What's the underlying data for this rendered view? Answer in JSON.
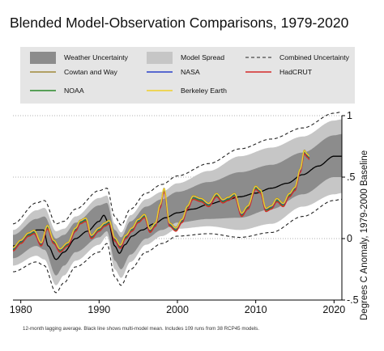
{
  "chart_data": {
    "type": "line",
    "title": "Blended Model-Observation Comparisons, 1979-2020",
    "xlabel": "",
    "ylabel": "Degrees C Anomaly, 1979-2000 Baseline",
    "footnote": "12-month lagging average. Black line shows multi-model mean. Includes 109 runs from 38 RCP45 models.",
    "xlim": [
      1979,
      2021
    ],
    "ylim": [
      -0.5,
      1.0
    ],
    "x_ticks": [
      1980,
      1990,
      2000,
      2010,
      2020
    ],
    "y_ticks": [
      1,
      0.5,
      0,
      -0.5
    ],
    "y_tick_labels": [
      "1",
      ".5",
      "0",
      "-.5"
    ],
    "grid": "horizontal-dotted",
    "legend_position": "top",
    "legend": [
      {
        "label": "Weather Uncertainty",
        "kind": "band",
        "color": "#8c8c8c"
      },
      {
        "label": "Model Spread",
        "kind": "band",
        "color": "#c6c6c6"
      },
      {
        "label": "Combined Uncertainty",
        "kind": "dashed",
        "color": "#222222"
      },
      {
        "label": "Cowtan and Way",
        "kind": "line",
        "color": "#a08a3a"
      },
      {
        "label": "NASA",
        "kind": "line",
        "color": "#2a40c8"
      },
      {
        "label": "HadCRUT",
        "kind": "line",
        "color": "#d42a2a"
      },
      {
        "label": "NOAA",
        "kind": "line",
        "color": "#2a8a2a"
      },
      {
        "label": "Berkeley Earth",
        "kind": "line",
        "color": "#f0d02a"
      }
    ],
    "model_mean": {
      "x": [
        1979,
        1981,
        1982,
        1982.9,
        1983.5,
        1984.5,
        1985.5,
        1987,
        1988.5,
        1990,
        1990.6,
        1991.2,
        1992,
        1992.6,
        1993.3,
        1994.2,
        1995.5,
        1997,
        1998.5,
        2000,
        2002,
        2004,
        2006,
        2008,
        2010,
        2012,
        2014,
        2016,
        2018,
        2020,
        2021
      ],
      "y": [
        -0.06,
        0.02,
        0.07,
        0.07,
        -0.06,
        -0.17,
        -0.11,
        0.0,
        0.06,
        0.14,
        0.19,
        0.13,
        -0.06,
        -0.12,
        -0.05,
        0.02,
        0.07,
        0.12,
        0.17,
        0.21,
        0.24,
        0.28,
        0.31,
        0.34,
        0.37,
        0.41,
        0.45,
        0.52,
        0.59,
        0.67,
        0.67
      ]
    },
    "model_spread": {
      "x": [
        1979,
        1982,
        1983,
        1984.5,
        1985.5,
        1987,
        1990,
        1991,
        1992,
        1992.8,
        1994,
        1996,
        1998,
        2000,
        2004,
        2008,
        2012,
        2016,
        2020,
        2021
      ],
      "upper": [
        0.07,
        0.23,
        0.25,
        0.06,
        0.08,
        0.18,
        0.33,
        0.35,
        0.12,
        0.05,
        0.19,
        0.32,
        0.38,
        0.45,
        0.55,
        0.67,
        0.74,
        0.83,
        0.96,
        0.97
      ],
      "lower": [
        -0.22,
        -0.14,
        -0.17,
        -0.38,
        -0.3,
        -0.18,
        -0.05,
        0.02,
        -0.25,
        -0.32,
        -0.19,
        -0.05,
        0.02,
        0.08,
        0.1,
        0.07,
        0.12,
        0.26,
        0.36,
        0.37
      ]
    },
    "weather_uncertainty": {
      "x": [
        1979,
        1982,
        1983,
        1984.5,
        1985.5,
        1987,
        1990,
        1991,
        1992,
        1992.8,
        1994,
        1996,
        1998,
        2000,
        2004,
        2008,
        2012,
        2016,
        2020,
        2021
      ],
      "upper": [
        0.03,
        0.16,
        0.18,
        0.0,
        0.03,
        0.13,
        0.27,
        0.29,
        0.07,
        0.01,
        0.14,
        0.26,
        0.32,
        0.38,
        0.46,
        0.54,
        0.6,
        0.7,
        0.84,
        0.85
      ],
      "lower": [
        -0.16,
        -0.06,
        -0.09,
        -0.3,
        -0.22,
        -0.11,
        0.01,
        0.06,
        -0.18,
        -0.25,
        -0.13,
        0.0,
        0.07,
        0.13,
        0.16,
        0.17,
        0.24,
        0.36,
        0.5,
        0.5
      ]
    },
    "combined_uncertainty": {
      "x": [
        1979,
        1982,
        1983,
        1984.5,
        1985.5,
        1987,
        1990,
        1991,
        1992,
        1992.8,
        1994,
        1996,
        1998,
        2000,
        2004,
        2008,
        2012,
        2016,
        2020,
        2021
      ],
      "upper": [
        0.12,
        0.29,
        0.31,
        0.12,
        0.14,
        0.24,
        0.39,
        0.41,
        0.18,
        0.11,
        0.24,
        0.37,
        0.44,
        0.51,
        0.61,
        0.73,
        0.81,
        0.9,
        1.02,
        1.03
      ],
      "lower": [
        -0.27,
        -0.19,
        -0.22,
        -0.44,
        -0.36,
        -0.23,
        -0.11,
        -0.04,
        -0.31,
        -0.38,
        -0.25,
        -0.11,
        -0.04,
        0.02,
        0.04,
        0.01,
        0.05,
        0.18,
        0.31,
        0.32
      ]
    },
    "observations": {
      "x": [
        1979,
        1980,
        1981,
        1981.7,
        1982.6,
        1983.4,
        1984.2,
        1985,
        1986,
        1987,
        1987.6,
        1988.3,
        1989,
        1990,
        1990.7,
        1991.3,
        1992,
        1992.7,
        1993.4,
        1994.2,
        1995,
        1995.8,
        1996.5,
        1997.2,
        1997.8,
        1998.3,
        1999,
        1999.8,
        2000.6,
        2001.3,
        2002,
        2003,
        2004,
        2005,
        2005.8,
        2006.5,
        2007.3,
        2008.2,
        2009,
        2010,
        2010.6,
        2011.3,
        2012,
        2012.7,
        2013.5,
        2014.3,
        2015,
        2015.7,
        2016.2,
        2016.6,
        2016.9
      ],
      "y": [
        -0.08,
        -0.02,
        0.04,
        0.06,
        -0.04,
        0.1,
        -0.02,
        -0.09,
        -0.04,
        0.08,
        0.14,
        0.16,
        0.02,
        0.08,
        0.12,
        0.14,
        0.0,
        -0.06,
        0.02,
        0.08,
        0.15,
        0.19,
        0.07,
        0.12,
        0.27,
        0.4,
        0.12,
        0.08,
        0.15,
        0.26,
        0.34,
        0.32,
        0.28,
        0.36,
        0.31,
        0.33,
        0.36,
        0.2,
        0.26,
        0.42,
        0.39,
        0.24,
        0.26,
        0.32,
        0.28,
        0.36,
        0.41,
        0.56,
        0.71,
        0.68,
        0.66
      ]
    },
    "observation_offsets": {
      "Cowtan and Way": 0.01,
      "NASA": 0.0,
      "HadCRUT": -0.02,
      "NOAA": -0.01,
      "Berkeley Earth": 0.005
    }
  }
}
